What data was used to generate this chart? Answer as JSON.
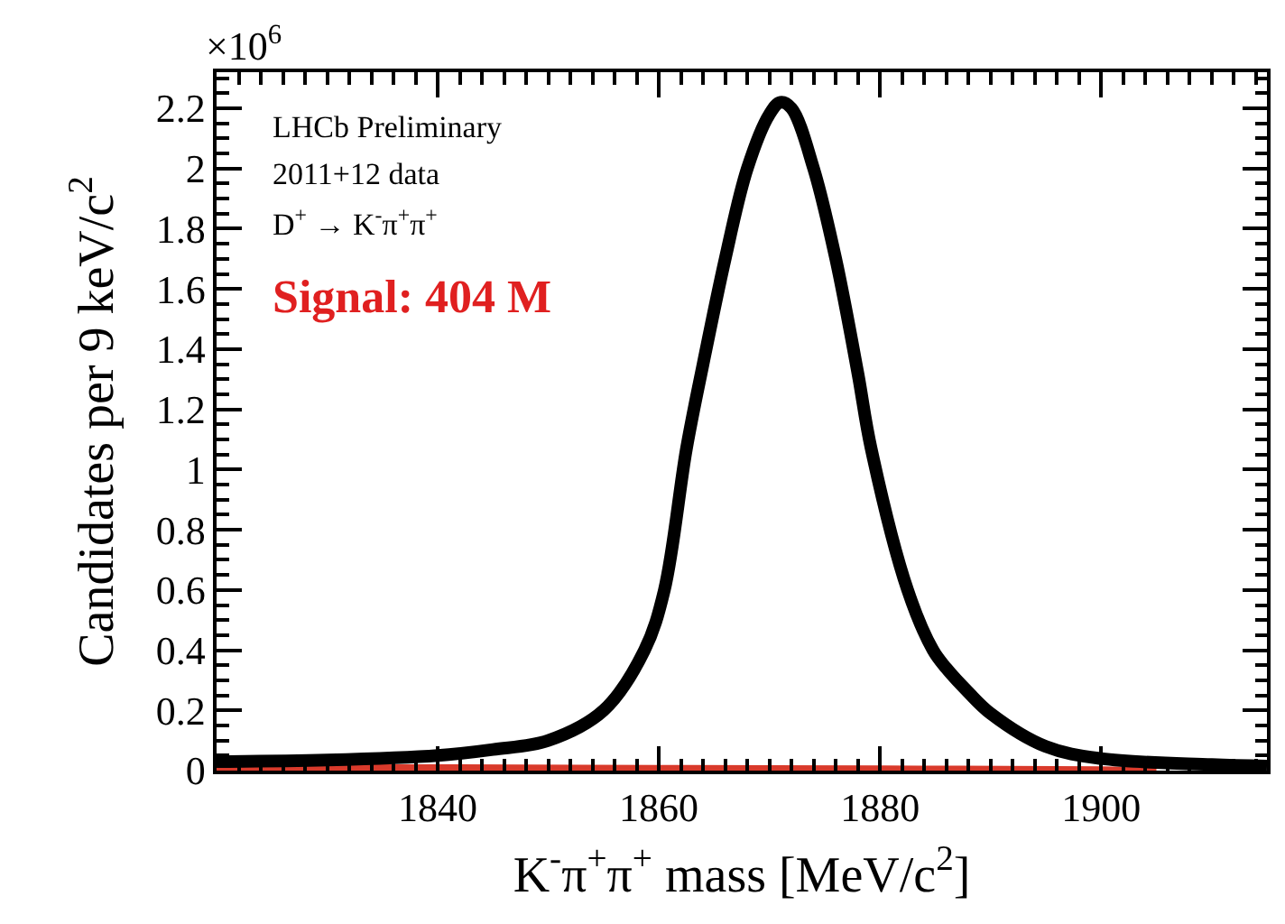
{
  "chart_data": {
    "type": "line",
    "xlabel": "K$^{-}$π$^{+}$π$^{+}$ mass [MeV/c$^{2}$]",
    "ylabel": "Candidates per 9 keV/c$^{2}$",
    "annotations": [
      "×10$^{6}$",
      "LHCb Preliminary",
      "2011+12 data",
      "D$^{+}$ → K$^{-}$π$^{+}$π$^{+}$",
      "Signal: 404 M"
    ],
    "series": [
      {
        "type": "area",
        "color": "#d93a2b",
        "x": [
          1820,
          1840,
          1860,
          1880,
          1900,
          1905
        ],
        "values": [
          0.012,
          0.012,
          0.01,
          0.008,
          0.005,
          0.0
        ]
      },
      {
        "color": "#000000",
        "x": [
          1820,
          1830,
          1840,
          1845,
          1850,
          1855,
          1858.7,
          1860.5,
          1862.5,
          1864,
          1866,
          1868,
          1870,
          1871,
          1872,
          1874,
          1876,
          1878,
          1879.2,
          1882.5,
          1884.8,
          1886,
          1888,
          1890,
          1895,
          1900,
          1910,
          1915
        ],
        "values": [
          0.03,
          0.035,
          0.05,
          0.07,
          0.1,
          0.2,
          0.4,
          0.6,
          1.07,
          1.35,
          1.7,
          2.0,
          2.18,
          2.22,
          2.2,
          2.0,
          1.7,
          1.32,
          1.07,
          0.6,
          0.4,
          0.34,
          0.26,
          0.19,
          0.08,
          0.04,
          0.02,
          0.015
        ]
      }
    ],
    "xlim": [
      1820,
      1915
    ],
    "xticks": [
      1840,
      1860,
      1880,
      1900
    ],
    "ylim": [
      0,
      2.32
    ],
    "yticks": [
      0,
      0.2,
      0.4,
      0.6,
      0.8,
      1,
      1.2,
      1.4,
      1.6,
      1.8,
      2,
      2.2
    ]
  }
}
